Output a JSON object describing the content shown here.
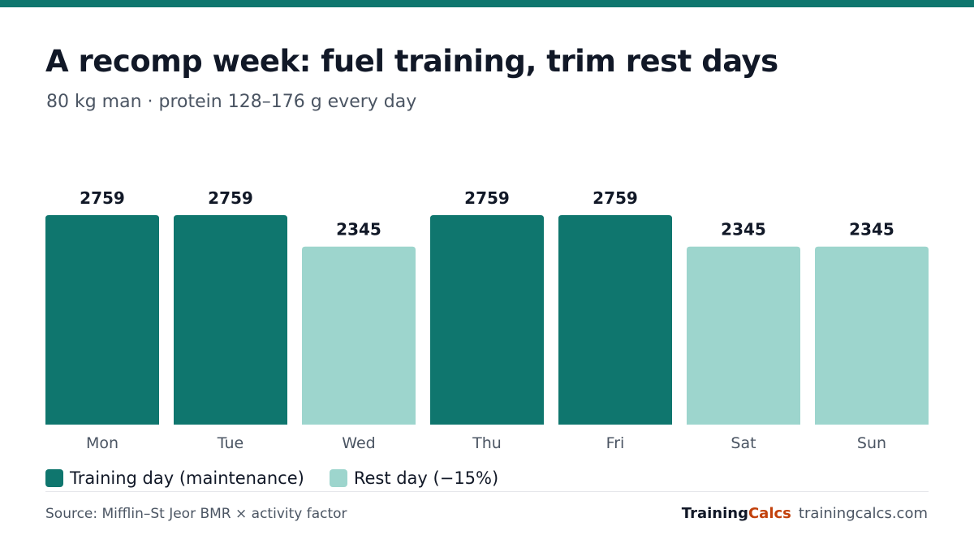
{
  "header": {
    "title": "A recomp week: fuel training, trim rest days",
    "subtitle": "80 kg man · protein 128–176 g every day"
  },
  "colors": {
    "accent": "#0f766e",
    "training": "#0f766e",
    "rest": "#9dd5cd",
    "brand_orange": "#c2410c"
  },
  "chart_data": {
    "type": "bar",
    "title": "A recomp week: fuel training, trim rest days",
    "subtitle": "80 kg man · protein 128–176 g every day",
    "categories": [
      "Mon",
      "Tue",
      "Wed",
      "Thu",
      "Fri",
      "Sat",
      "Sun"
    ],
    "values": [
      2759,
      2759,
      2345,
      2759,
      2759,
      2345,
      2345
    ],
    "day_type": [
      "training",
      "training",
      "rest",
      "training",
      "training",
      "rest",
      "rest"
    ],
    "data_labels": [
      "2759",
      "2759",
      "2345",
      "2759",
      "2759",
      "2345",
      "2345"
    ],
    "ylim": [
      0,
      2759
    ],
    "xlabel": "",
    "ylabel": "",
    "grid": false,
    "legend": {
      "placement": "bottom-left",
      "entries": [
        {
          "key": "training",
          "label": "Training day (maintenance)"
        },
        {
          "key": "rest",
          "label": "Rest day (−15%)"
        }
      ]
    }
  },
  "footer": {
    "source": "Source: Mifflin–St Jeor BMR × activity factor",
    "brand_part1": "Training",
    "brand_part2": "Calcs",
    "url": "trainingcalcs.com"
  }
}
